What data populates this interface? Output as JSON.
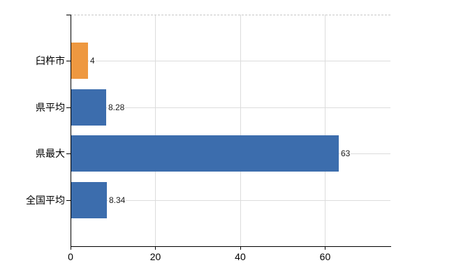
{
  "chart_data": {
    "type": "bar",
    "orientation": "horizontal",
    "title": "",
    "categories": [
      "臼杵市",
      "県平均",
      "県最大",
      "全国平均"
    ],
    "values": [
      4,
      8.28,
      63,
      8.34
    ],
    "value_labels": [
      "4",
      "8.28",
      "63",
      "8.34"
    ],
    "bar_colors": [
      "#EE9840",
      "#3C6DAD",
      "#3C6DAD",
      "#3C6DAD"
    ],
    "xlim": [
      0,
      75.4
    ],
    "x_ticks": [
      0,
      20,
      40,
      60
    ],
    "x_tick_labels": [
      "0",
      "20",
      "40",
      "60"
    ],
    "grid": true,
    "legend_position": "none",
    "colors": {
      "axis": "#000000",
      "grid": "#DCDCDC",
      "top_border": "#C8C8C8",
      "background": "#FFFFFF",
      "value_text": "#1A1A1A",
      "label_text": "#000000"
    }
  }
}
